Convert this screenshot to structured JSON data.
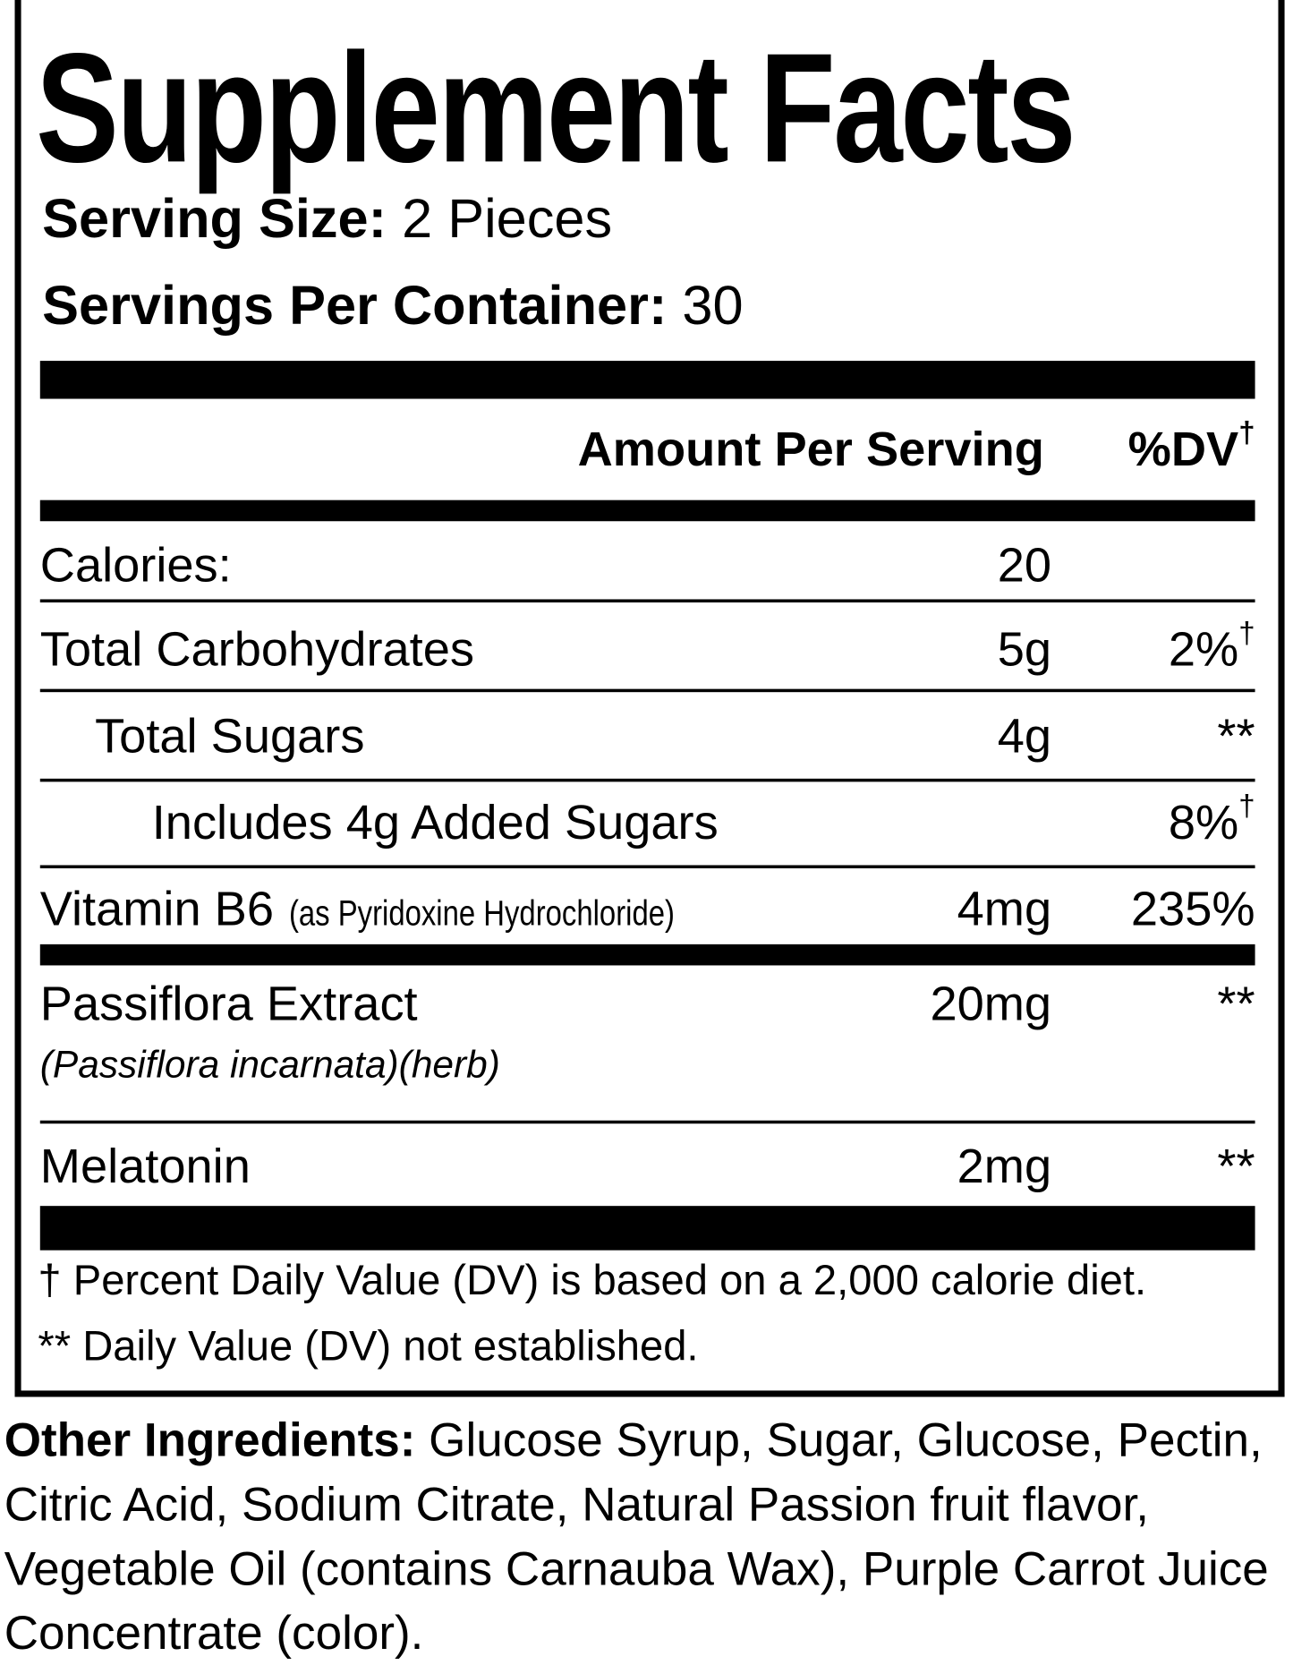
{
  "header": {
    "title": "Supplement Facts",
    "serving_size": {
      "label": "Serving Size:",
      "value": "2 Pieces"
    },
    "servings_per_container": {
      "label": "Servings Per Container:",
      "value": "30"
    }
  },
  "columns": {
    "amount": "Amount Per Serving",
    "dv": "%DV",
    "dv_mark": "†"
  },
  "rows": [
    {
      "name": "Calories:",
      "amount": "20"
    },
    {
      "name": "Total Carbohydrates",
      "amount": "5g",
      "dv": "2%",
      "dv_mark": "†"
    },
    {
      "name": "Total Sugars",
      "amount": "4g",
      "dv": "**"
    },
    {
      "name": "Includes 4g Added Sugars",
      "dv": "8%",
      "dv_mark": "†"
    },
    {
      "name": "Vitamin B6",
      "detail": "(as Pyridoxine Hydrochloride)",
      "amount": "4mg",
      "dv": "235%"
    },
    {
      "name": "Passiflora Extract",
      "sub": "(Passiflora incarnata)(herb)",
      "amount": "20mg",
      "dv": "**"
    },
    {
      "name": "Melatonin",
      "amount": "2mg",
      "dv": "**"
    }
  ],
  "footnotes": [
    "† Percent Daily Value (DV) is based on a 2,000 calorie diet.",
    "** Daily Value (DV) not established."
  ],
  "other_ingredients": {
    "label": "Other Ingredients:",
    "text": "Glucose Syrup, Sugar, Glucose, Pectin, Citric Acid, Sodium Citrate, Natural Passion fruit flavor, Vegetable Oil (contains Carnauba Wax), Purple Carrot Juice Concentrate (color)."
  }
}
